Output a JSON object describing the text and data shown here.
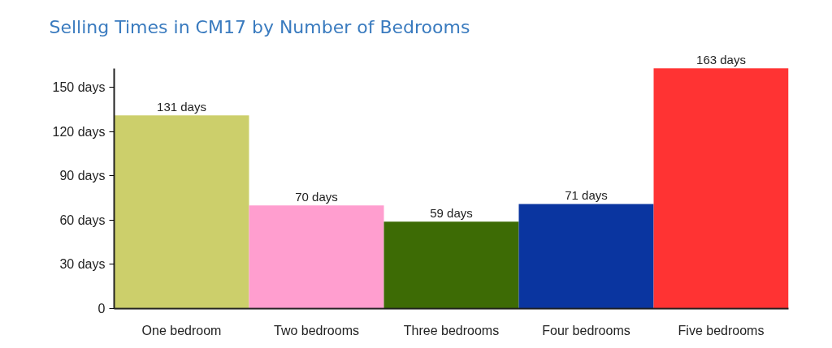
{
  "chart_data": {
    "type": "bar",
    "title": "Selling Times in CM17 by Number of Bedrooms",
    "categories": [
      "One bedroom",
      "Two bedrooms",
      "Three bedrooms",
      "Four bedrooms",
      "Five bedrooms"
    ],
    "values": [
      131,
      70,
      59,
      71,
      163
    ],
    "colors": [
      "#cccf6b",
      "#ff9ecf",
      "#3d6b05",
      "#0a35a0",
      "#ff3333"
    ],
    "value_labels": [
      "131 days",
      "70 days",
      "59 days",
      "71 days",
      "163 days"
    ],
    "ylim": [
      0,
      163
    ],
    "yticks": [
      0,
      {
        "value": 30,
        "label": "30 days"
      },
      {
        "value": 60,
        "label": "60 days"
      },
      {
        "value": 90,
        "label": "90 days"
      },
      {
        "value": 120,
        "label": "120 days"
      },
      {
        "value": 150,
        "label": "150 days"
      }
    ],
    "grid": false
  }
}
